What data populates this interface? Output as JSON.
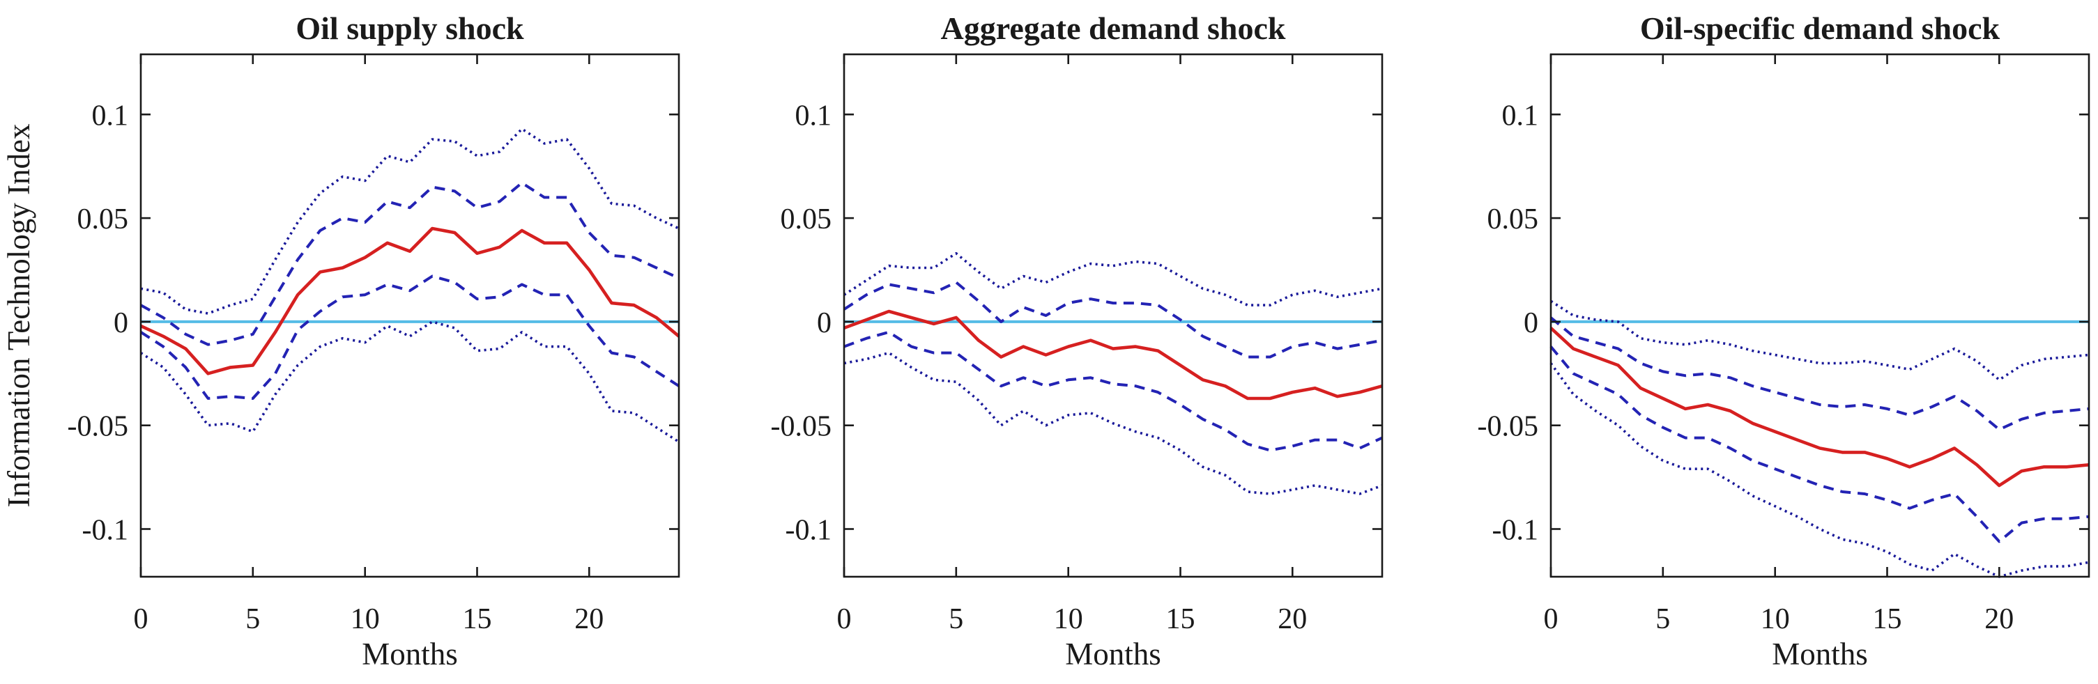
{
  "figure": {
    "background": "#ffffff",
    "text_color": "#1a1a1a",
    "colors": {
      "median_line": "#d62020",
      "dashed_band": "#2323b4",
      "dotted_band": "#191999",
      "zero_line": "#55bce6"
    }
  },
  "chart_data": [
    {
      "type": "line",
      "title": "Oil supply shock",
      "xlabel": "Months",
      "ylabel": "Information Technology Index",
      "x": [
        0,
        1,
        2,
        3,
        4,
        5,
        6,
        7,
        8,
        9,
        10,
        11,
        12,
        13,
        14,
        15,
        16,
        17,
        18,
        19,
        20,
        21,
        22,
        23,
        24
      ],
      "xlim": [
        0,
        24
      ],
      "ylim": [
        -0.123,
        0.129
      ],
      "xticks": [
        0,
        5,
        10,
        15,
        20
      ],
      "xtick_labels": [
        "0",
        "5",
        "10",
        "15",
        "20"
      ],
      "yticks": [
        0.1,
        0.05,
        0,
        -0.05,
        -0.1
      ],
      "ytick_labels": [
        "0.1",
        "0.05",
        "0",
        "-0.05",
        "-0.1"
      ],
      "grid": false,
      "legend_position": "none",
      "zero_line": 0,
      "series": [
        {
          "name": "outer band lower (dotted)",
          "style": "dotted",
          "color": "#191999",
          "values": [
            -0.015,
            -0.022,
            -0.035,
            -0.05,
            -0.049,
            -0.053,
            -0.035,
            -0.021,
            -0.012,
            -0.008,
            -0.01,
            -0.002,
            -0.007,
            0.0,
            -0.003,
            -0.014,
            -0.013,
            -0.005,
            -0.012,
            -0.012,
            -0.025,
            -0.043,
            -0.044,
            -0.051,
            -0.058
          ]
        },
        {
          "name": "outer band upper (dotted)",
          "style": "dotted",
          "color": "#191999",
          "values": [
            0.016,
            0.014,
            0.006,
            0.004,
            0.008,
            0.011,
            0.03,
            0.048,
            0.062,
            0.07,
            0.068,
            0.08,
            0.077,
            0.088,
            0.087,
            0.08,
            0.082,
            0.093,
            0.086,
            0.088,
            0.074,
            0.057,
            0.056,
            0.05,
            0.045
          ]
        },
        {
          "name": "inner band lower (dashed)",
          "style": "dashed",
          "color": "#2323b4",
          "values": [
            -0.005,
            -0.012,
            -0.022,
            -0.037,
            -0.036,
            -0.037,
            -0.025,
            -0.004,
            0.005,
            0.012,
            0.013,
            0.018,
            0.015,
            0.022,
            0.019,
            0.011,
            0.012,
            0.018,
            0.013,
            0.013,
            -0.002,
            -0.015,
            -0.017,
            -0.024,
            -0.031
          ]
        },
        {
          "name": "inner band upper (dashed)",
          "style": "dashed",
          "color": "#2323b4",
          "values": [
            0.008,
            0.002,
            -0.006,
            -0.011,
            -0.009,
            -0.006,
            0.012,
            0.03,
            0.044,
            0.05,
            0.048,
            0.058,
            0.055,
            0.065,
            0.063,
            0.055,
            0.058,
            0.067,
            0.06,
            0.06,
            0.043,
            0.032,
            0.031,
            0.026,
            0.021
          ]
        },
        {
          "name": "median response",
          "style": "median",
          "color": "#d62020",
          "values": [
            -0.002,
            -0.007,
            -0.013,
            -0.025,
            -0.022,
            -0.021,
            -0.005,
            0.013,
            0.024,
            0.026,
            0.031,
            0.038,
            0.034,
            0.045,
            0.043,
            0.033,
            0.036,
            0.044,
            0.038,
            0.038,
            0.025,
            0.009,
            0.008,
            0.002,
            -0.007
          ]
        }
      ]
    },
    {
      "type": "line",
      "title": "Aggregate demand shock",
      "xlabel": "Months",
      "ylabel": "",
      "x": [
        0,
        1,
        2,
        3,
        4,
        5,
        6,
        7,
        8,
        9,
        10,
        11,
        12,
        13,
        14,
        15,
        16,
        17,
        18,
        19,
        20,
        21,
        22,
        23,
        24
      ],
      "xlim": [
        0,
        24
      ],
      "ylim": [
        -0.123,
        0.129
      ],
      "xticks": [
        0,
        5,
        10,
        15,
        20
      ],
      "xtick_labels": [
        "0",
        "5",
        "10",
        "15",
        "20"
      ],
      "yticks": [
        0.1,
        0.05,
        0,
        -0.05,
        -0.1
      ],
      "ytick_labels": [
        "0.1",
        "0.05",
        "0",
        "-0.05",
        "-0.1"
      ],
      "grid": false,
      "legend_position": "none",
      "zero_line": 0,
      "series": [
        {
          "name": "outer band lower (dotted)",
          "style": "dotted",
          "color": "#191999",
          "values": [
            -0.02,
            -0.018,
            -0.015,
            -0.022,
            -0.028,
            -0.029,
            -0.038,
            -0.05,
            -0.043,
            -0.05,
            -0.045,
            -0.044,
            -0.049,
            -0.053,
            -0.056,
            -0.062,
            -0.07,
            -0.074,
            -0.082,
            -0.083,
            -0.081,
            -0.079,
            -0.081,
            -0.083,
            -0.079
          ]
        },
        {
          "name": "outer band upper (dotted)",
          "style": "dotted",
          "color": "#191999",
          "values": [
            0.013,
            0.02,
            0.027,
            0.026,
            0.026,
            0.033,
            0.024,
            0.016,
            0.022,
            0.019,
            0.024,
            0.028,
            0.027,
            0.029,
            0.028,
            0.022,
            0.016,
            0.013,
            0.008,
            0.008,
            0.013,
            0.015,
            0.012,
            0.014,
            0.016
          ]
        },
        {
          "name": "inner band lower (dashed)",
          "style": "dashed",
          "color": "#2323b4",
          "values": [
            -0.012,
            -0.008,
            -0.005,
            -0.012,
            -0.015,
            -0.015,
            -0.023,
            -0.031,
            -0.027,
            -0.031,
            -0.028,
            -0.027,
            -0.03,
            -0.031,
            -0.034,
            -0.04,
            -0.047,
            -0.052,
            -0.059,
            -0.062,
            -0.06,
            -0.057,
            -0.057,
            -0.061,
            -0.056
          ]
        },
        {
          "name": "inner band upper (dashed)",
          "style": "dashed",
          "color": "#2323b4",
          "values": [
            0.006,
            0.013,
            0.018,
            0.016,
            0.014,
            0.019,
            0.01,
            0.0,
            0.007,
            0.003,
            0.009,
            0.011,
            0.009,
            0.009,
            0.008,
            0.001,
            -0.007,
            -0.012,
            -0.017,
            -0.017,
            -0.012,
            -0.01,
            -0.013,
            -0.011,
            -0.009
          ]
        },
        {
          "name": "median response",
          "style": "median",
          "color": "#d62020",
          "values": [
            -0.003,
            0.001,
            0.005,
            0.002,
            -0.001,
            0.002,
            -0.009,
            -0.017,
            -0.012,
            -0.016,
            -0.012,
            -0.009,
            -0.013,
            -0.012,
            -0.014,
            -0.021,
            -0.028,
            -0.031,
            -0.037,
            -0.037,
            -0.034,
            -0.032,
            -0.036,
            -0.034,
            -0.031
          ]
        }
      ]
    },
    {
      "type": "line",
      "title": "Oil-specific demand shock",
      "xlabel": "Months",
      "ylabel": "",
      "x": [
        0,
        1,
        2,
        3,
        4,
        5,
        6,
        7,
        8,
        9,
        10,
        11,
        12,
        13,
        14,
        15,
        16,
        17,
        18,
        19,
        20,
        21,
        22,
        23,
        24
      ],
      "xlim": [
        0,
        24
      ],
      "ylim": [
        -0.123,
        0.129
      ],
      "xticks": [
        0,
        5,
        10,
        15,
        20
      ],
      "xtick_labels": [
        "0",
        "5",
        "10",
        "15",
        "20"
      ],
      "yticks": [
        0.1,
        0.05,
        0,
        -0.05,
        -0.1
      ],
      "ytick_labels": [
        "0.1",
        "0.05",
        "0",
        "-0.05",
        "-0.1"
      ],
      "grid": false,
      "legend_position": "none",
      "zero_line": 0,
      "series": [
        {
          "name": "outer band lower (dotted)",
          "style": "dotted",
          "color": "#191999",
          "values": [
            -0.02,
            -0.035,
            -0.043,
            -0.05,
            -0.06,
            -0.067,
            -0.071,
            -0.071,
            -0.077,
            -0.084,
            -0.089,
            -0.094,
            -0.1,
            -0.105,
            -0.107,
            -0.111,
            -0.117,
            -0.12,
            -0.112,
            -0.118,
            -0.123,
            -0.12,
            -0.118,
            -0.118,
            -0.116
          ]
        },
        {
          "name": "outer band upper (dotted)",
          "style": "dotted",
          "color": "#191999",
          "values": [
            0.01,
            0.003,
            0.001,
            0.0,
            -0.008,
            -0.01,
            -0.011,
            -0.009,
            -0.011,
            -0.014,
            -0.016,
            -0.018,
            -0.02,
            -0.02,
            -0.019,
            -0.021,
            -0.023,
            -0.018,
            -0.013,
            -0.019,
            -0.028,
            -0.021,
            -0.018,
            -0.017,
            -0.016
          ]
        },
        {
          "name": "inner band lower (dashed)",
          "style": "dashed",
          "color": "#2323b4",
          "values": [
            -0.012,
            -0.025,
            -0.03,
            -0.035,
            -0.045,
            -0.051,
            -0.056,
            -0.056,
            -0.061,
            -0.067,
            -0.071,
            -0.075,
            -0.079,
            -0.082,
            -0.083,
            -0.086,
            -0.09,
            -0.086,
            -0.083,
            -0.094,
            -0.106,
            -0.097,
            -0.095,
            -0.095,
            -0.094
          ]
        },
        {
          "name": "inner band upper (dashed)",
          "style": "dashed",
          "color": "#2323b4",
          "values": [
            0.002,
            -0.007,
            -0.01,
            -0.013,
            -0.02,
            -0.024,
            -0.026,
            -0.025,
            -0.027,
            -0.031,
            -0.034,
            -0.037,
            -0.04,
            -0.041,
            -0.04,
            -0.042,
            -0.045,
            -0.041,
            -0.036,
            -0.043,
            -0.052,
            -0.047,
            -0.044,
            -0.043,
            -0.042
          ]
        },
        {
          "name": "median response",
          "style": "median",
          "color": "#d62020",
          "values": [
            -0.003,
            -0.013,
            -0.017,
            -0.021,
            -0.032,
            -0.037,
            -0.042,
            -0.04,
            -0.043,
            -0.049,
            -0.053,
            -0.057,
            -0.061,
            -0.063,
            -0.063,
            -0.066,
            -0.07,
            -0.066,
            -0.061,
            -0.069,
            -0.079,
            -0.072,
            -0.07,
            -0.07,
            -0.069
          ]
        }
      ]
    }
  ]
}
